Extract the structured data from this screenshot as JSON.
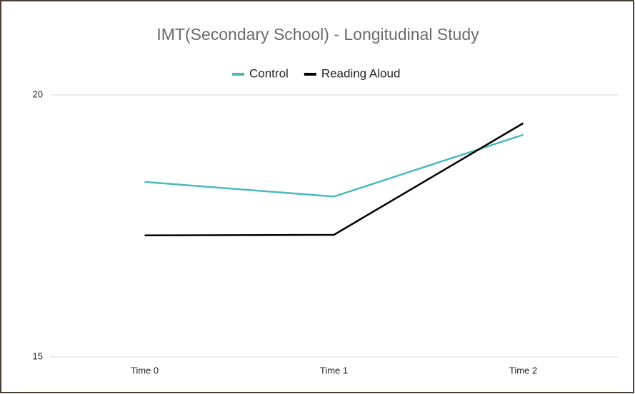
{
  "chart_data": {
    "type": "line",
    "title": "IMT(Secondary School) - Longitudinal Study",
    "categories": [
      "Time 0",
      "Time 1",
      "Time 2"
    ],
    "series": [
      {
        "name": "Control",
        "color": "#4cb9bd",
        "values": [
          18.34,
          18.06,
          19.24
        ]
      },
      {
        "name": "Reading Aloud",
        "color": "#000000",
        "values": [
          17.32,
          17.33,
          19.46
        ]
      }
    ],
    "ylim": [
      15,
      20
    ],
    "yticks": [
      15,
      20
    ],
    "grid": true,
    "legend": "top"
  }
}
